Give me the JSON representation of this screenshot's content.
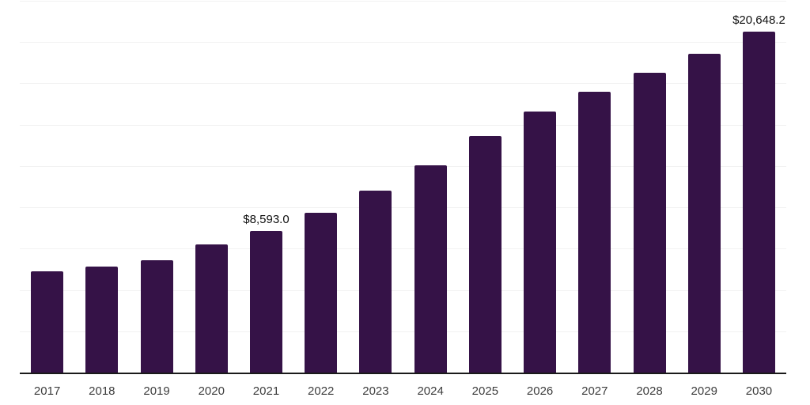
{
  "chart_data": {
    "type": "bar",
    "title": "",
    "xlabel": "",
    "ylabel": "",
    "categories": [
      "2017",
      "2018",
      "2019",
      "2020",
      "2021",
      "2022",
      "2023",
      "2024",
      "2025",
      "2026",
      "2027",
      "2028",
      "2029",
      "2030"
    ],
    "values": [
      6120,
      6435,
      6790,
      7755,
      8593.0,
      9690,
      10990,
      12530,
      14310,
      15800,
      17000,
      18160,
      19310,
      20648.2
    ],
    "data_labels": [
      "",
      "",
      "",
      "",
      "$8,593.0",
      "",
      "",
      "",
      "",
      "",
      "",
      "",
      "",
      "$20,648.2"
    ],
    "ylim": [
      0,
      22500
    ],
    "gridline_step": 2500,
    "grid": "horizontal-faint",
    "legend": "none",
    "yaxis_tick_labels": "none",
    "colors": {
      "bar": "#351247",
      "axis": "#1a1a1a",
      "gridline": "#f2f2f2",
      "tick_label": "#3d3d3d",
      "data_label": "#111111",
      "background": "#ffffff"
    }
  }
}
